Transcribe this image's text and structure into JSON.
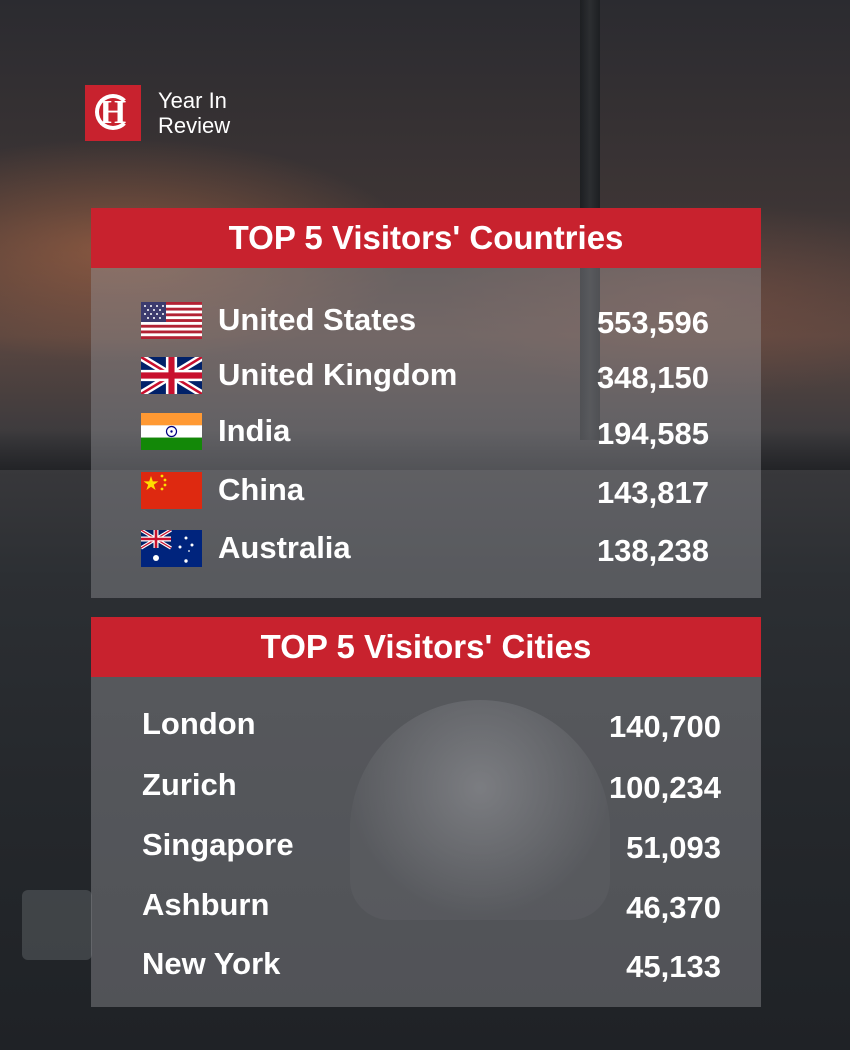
{
  "brand": {
    "logo_letter": "H",
    "title_line1": "Year In",
    "title_line2": "Review",
    "accent_color": "#c8222e"
  },
  "countries": {
    "title": "TOP 5 Visitors' Countries",
    "rows": [
      {
        "flag_icon": "us-flag-icon",
        "name": "United States",
        "value": "553,596"
      },
      {
        "flag_icon": "uk-flag-icon",
        "name": "United Kingdom",
        "value": "348,150"
      },
      {
        "flag_icon": "india-flag-icon",
        "name": "India",
        "value": "194,585"
      },
      {
        "flag_icon": "china-flag-icon",
        "name": "China",
        "value": "143,817"
      },
      {
        "flag_icon": "australia-flag-icon",
        "name": "Australia",
        "value": "138,238"
      }
    ]
  },
  "cities": {
    "title": "TOP 5 Visitors' Cities",
    "rows": [
      {
        "name": "London",
        "value": "140,700"
      },
      {
        "name": "Zurich",
        "value": "100,234"
      },
      {
        "name": "Singapore",
        "value": "51,093"
      },
      {
        "name": "Ashburn",
        "value": "46,370"
      },
      {
        "name": "New York",
        "value": "45,133"
      }
    ]
  }
}
